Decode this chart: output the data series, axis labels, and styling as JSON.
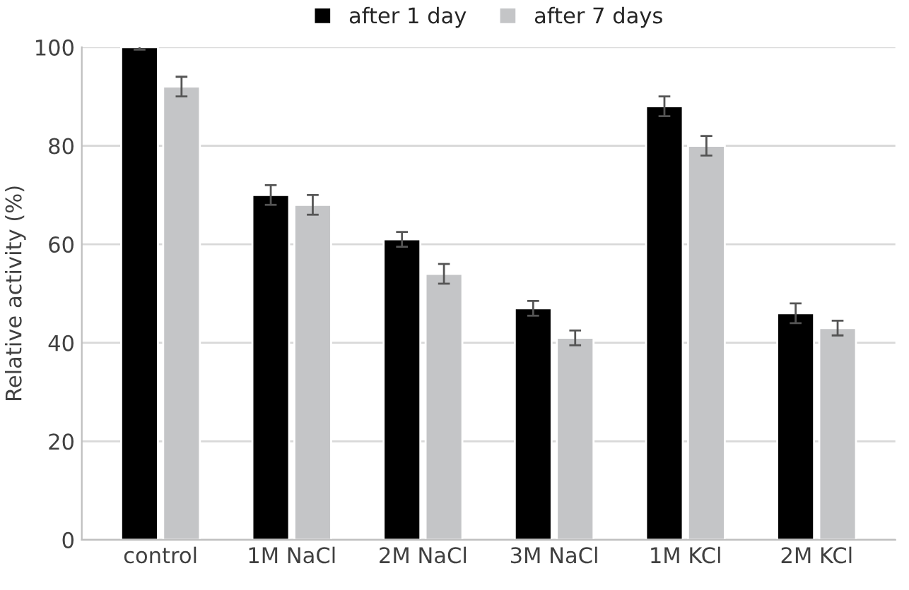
{
  "chart_data": {
    "type": "bar",
    "ylabel": "Relative activity (%)",
    "categories": [
      "control",
      "1M NaCl",
      "2M NaCl",
      "3M NaCl",
      "1M KCl",
      "2M KCl"
    ],
    "series": [
      {
        "name": "after 1 day",
        "color": "#000000",
        "values": [
          100,
          70,
          61,
          47,
          88,
          46
        ],
        "errors": [
          0.5,
          2,
          1.5,
          1.5,
          2,
          2
        ]
      },
      {
        "name": "after 7 days",
        "color": "#c4c5c7",
        "values": [
          92,
          68,
          54,
          41,
          80,
          43
        ],
        "errors": [
          2,
          2,
          2,
          1.5,
          2,
          1.5
        ]
      }
    ],
    "ylim": [
      0,
      100
    ],
    "yticks": [
      0,
      20,
      40,
      60,
      80,
      100
    ],
    "grid": "y",
    "legend": "top"
  }
}
